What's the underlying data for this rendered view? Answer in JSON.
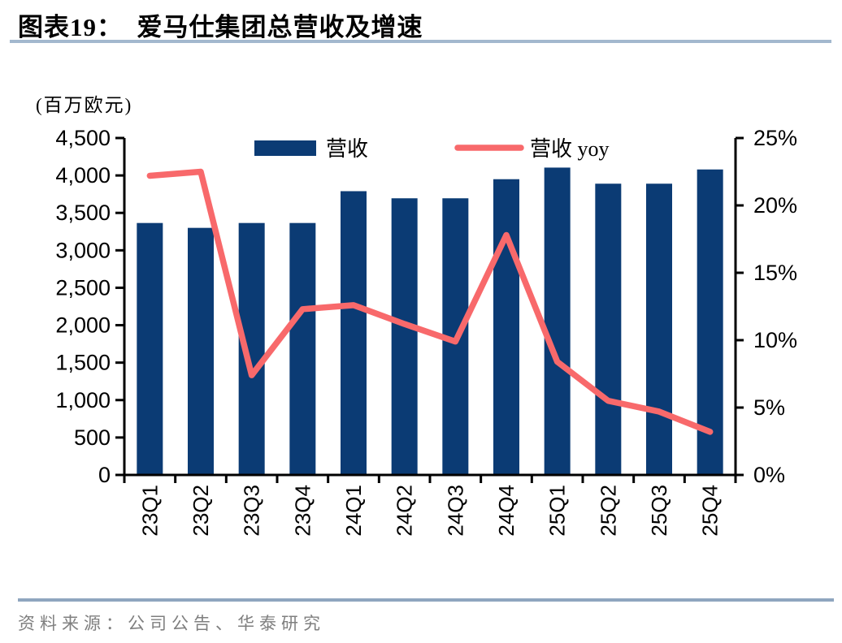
{
  "header": {
    "title": "图表19：  爱马仕集团总营收及增速"
  },
  "chart_data": {
    "type": "bar",
    "combo": "bar+line",
    "title": "爱马仕集团总营收及增速",
    "categories": [
      "23Q1",
      "23Q2",
      "23Q3",
      "23Q4",
      "24Q1",
      "24Q2",
      "24Q3",
      "24Q4",
      "25Q1",
      "25Q2",
      "25Q3",
      "25Q4"
    ],
    "series": [
      {
        "name": "营收",
        "type": "bar",
        "axis": "left",
        "unit": "百万欧元",
        "values": [
          3365,
          3300,
          3365,
          3365,
          3790,
          3695,
          3695,
          3950,
          4105,
          3890,
          3890,
          4080
        ]
      },
      {
        "name": "营收 yoy",
        "type": "line",
        "axis": "right",
        "unit": "%",
        "values": [
          22.2,
          22.5,
          7.4,
          12.3,
          12.6,
          11.2,
          9.9,
          17.8,
          8.4,
          5.5,
          4.7,
          3.2
        ]
      }
    ],
    "left_axis": {
      "title": "(百万欧元)",
      "min": 0,
      "max": 4500,
      "step": 500,
      "tick_labels": [
        "0",
        "500",
        "1,000",
        "1,500",
        "2,000",
        "2,500",
        "3,000",
        "3,500",
        "4,000",
        "4,500"
      ]
    },
    "right_axis": {
      "min": 0,
      "max": 25,
      "step": 5,
      "tick_labels": [
        "0%",
        "5%",
        "10%",
        "15%",
        "20%",
        "25%"
      ]
    },
    "legend_position": "top-center",
    "grid": false
  },
  "colors": {
    "bar": "#0B3B74",
    "line": "#F8696B",
    "axis": "#000000",
    "title_underline": "#A3B8CE",
    "footer_divider": "#8FA6BF",
    "source_text": "#7F7F7F"
  },
  "footer": {
    "source": "资料来源：公司公告、华泰研究"
  }
}
